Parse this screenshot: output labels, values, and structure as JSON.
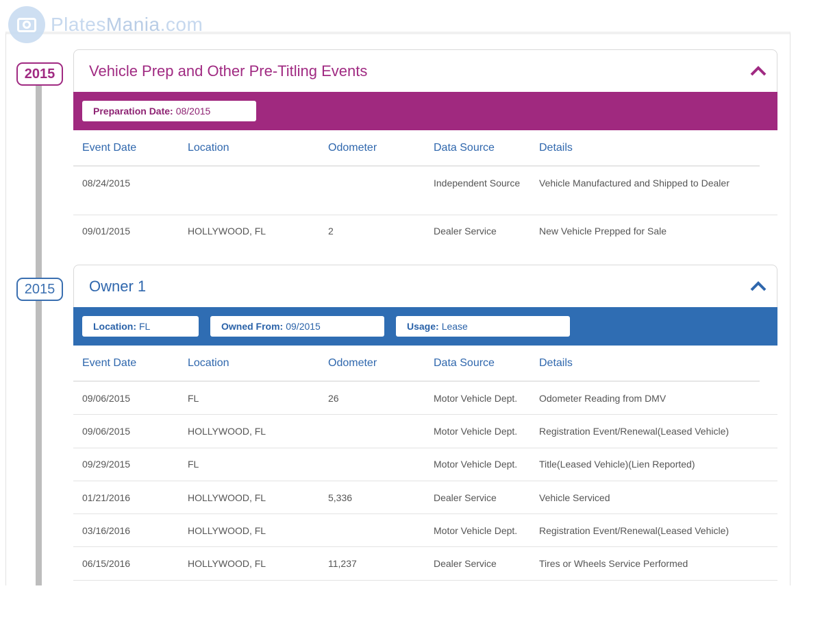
{
  "watermark": {
    "plates": "Plates",
    "mania": "Mania",
    "domain": ".com",
    "icon": "camera-icon"
  },
  "timeline": {
    "years": [
      "2015",
      "2015"
    ]
  },
  "prep": {
    "title": "Vehicle Prep and Other Pre-Titling Events",
    "banner": {
      "preparation_label": "Preparation Date:",
      "preparation_value": "08/2015"
    },
    "columns": [
      "Event Date",
      "Location",
      "Odometer",
      "Data Source",
      "Details"
    ],
    "rows": [
      {
        "date": "08/24/2015",
        "location": "",
        "odometer": "",
        "source": "Independent Source",
        "details": "Vehicle Manufactured and Shipped to Dealer"
      },
      {
        "date": "09/01/2015",
        "location": "HOLLYWOOD, FL",
        "odometer": "2",
        "source": "Dealer Service",
        "details": "New Vehicle Prepped for Sale"
      }
    ]
  },
  "owner": {
    "title": "Owner 1",
    "banner": {
      "location_label": "Location:",
      "location_value": "FL",
      "owned_label": "Owned From:",
      "owned_value": "09/2015",
      "usage_label": "Usage:",
      "usage_value": "Lease"
    },
    "columns": [
      "Event Date",
      "Location",
      "Odometer",
      "Data Source",
      "Details"
    ],
    "rows": [
      {
        "date": "09/06/2015",
        "location": "FL",
        "odometer": "26",
        "source": "Motor Vehicle Dept.",
        "details": "Odometer Reading from DMV"
      },
      {
        "date": "09/06/2015",
        "location": "HOLLYWOOD, FL",
        "odometer": "",
        "source": "Motor Vehicle Dept.",
        "details": "Registration Event/Renewal(Leased Vehicle)"
      },
      {
        "date": "09/29/2015",
        "location": "FL",
        "odometer": "",
        "source": "Motor Vehicle Dept.",
        "details": "Title(Leased Vehicle)(Lien Reported)"
      },
      {
        "date": "01/21/2016",
        "location": "HOLLYWOOD, FL",
        "odometer": "5,336",
        "source": "Dealer Service",
        "details": "Vehicle Serviced"
      },
      {
        "date": "03/16/2016",
        "location": "HOLLYWOOD, FL",
        "odometer": "",
        "source": "Motor Vehicle Dept.",
        "details": "Registration Event/Renewal(Leased Vehicle)"
      },
      {
        "date": "06/15/2016",
        "location": "HOLLYWOOD, FL",
        "odometer": "11,237",
        "source": "Dealer Service",
        "details": "Tires or Wheels Service Performed"
      }
    ]
  },
  "colors": {
    "prep_accent": "#a0297f",
    "owner_accent": "#2f6db3",
    "header_text": "#2f67ad"
  }
}
